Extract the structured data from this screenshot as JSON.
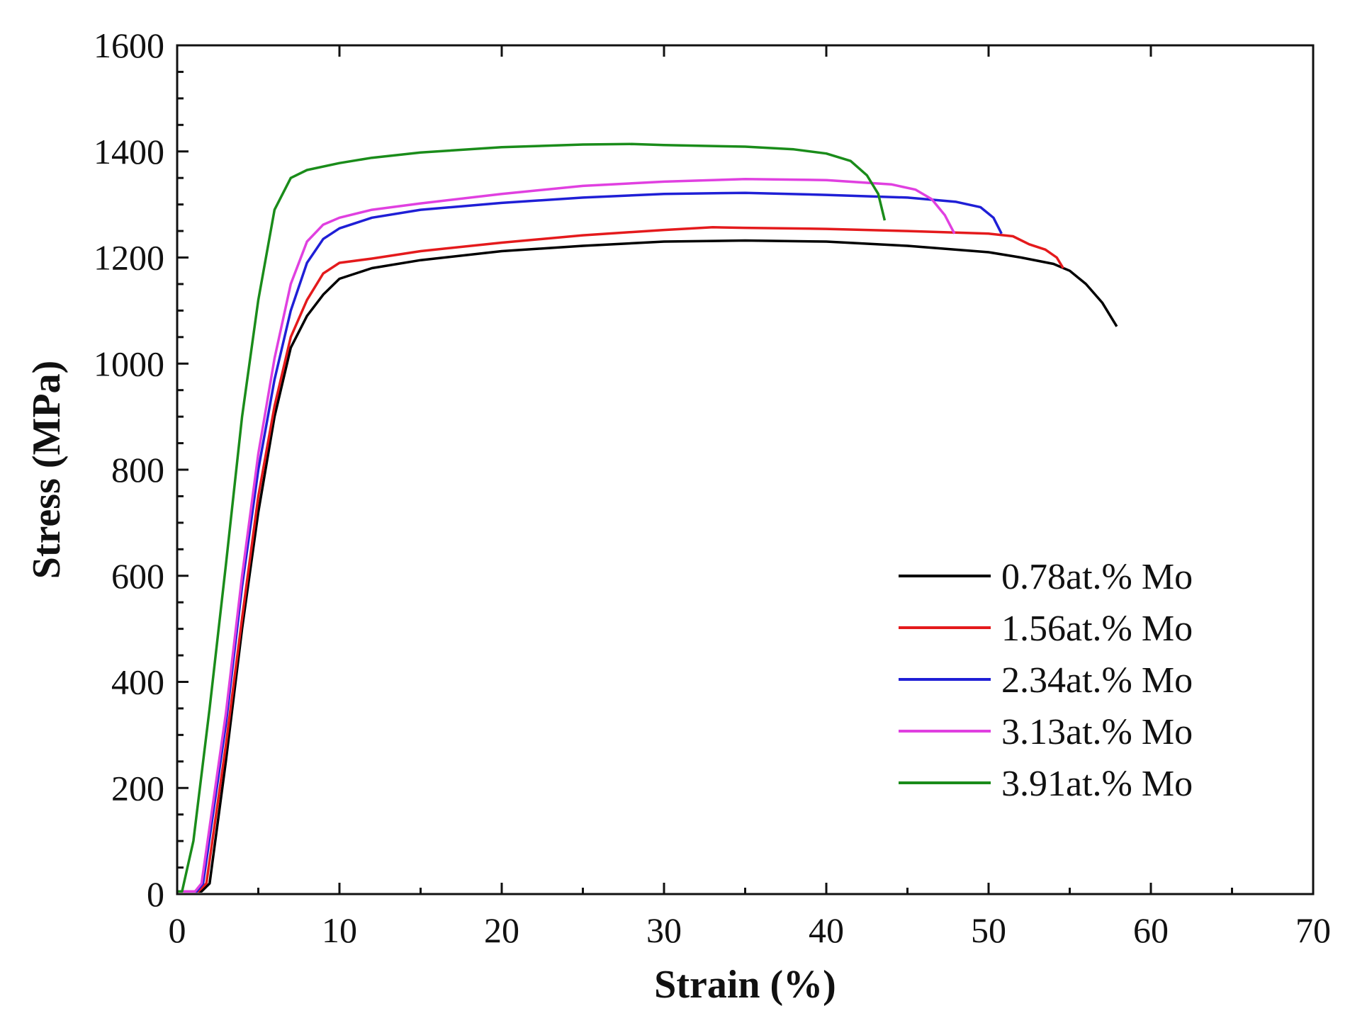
{
  "chart_data": {
    "type": "line",
    "title": "",
    "xlabel": "Strain (%)",
    "ylabel": "Stress (MPa)",
    "xlim": [
      0,
      70
    ],
    "ylim": [
      0,
      1600
    ],
    "x_ticks": [
      "0",
      "10",
      "20",
      "30",
      "40",
      "50",
      "60",
      "70"
    ],
    "y_ticks": [
      "0",
      "200",
      "400",
      "600",
      "800",
      "1000",
      "1200",
      "1400",
      "1600"
    ],
    "grid": false,
    "legend_position": "bottom-right",
    "series": [
      {
        "name": "0.78at.% Mo",
        "color": "#000000",
        "points": [
          [
            0,
            5
          ],
          [
            1.5,
            5
          ],
          [
            2.0,
            20
          ],
          [
            3.0,
            250
          ],
          [
            4.0,
            500
          ],
          [
            5.0,
            720
          ],
          [
            6.0,
            900
          ],
          [
            7.0,
            1030
          ],
          [
            8.0,
            1090
          ],
          [
            9.0,
            1130
          ],
          [
            10,
            1160
          ],
          [
            12,
            1180
          ],
          [
            15,
            1195
          ],
          [
            20,
            1212
          ],
          [
            25,
            1222
          ],
          [
            30,
            1230
          ],
          [
            35,
            1232
          ],
          [
            40,
            1230
          ],
          [
            45,
            1222
          ],
          [
            50,
            1210
          ],
          [
            52,
            1200
          ],
          [
            54,
            1188
          ],
          [
            55,
            1175
          ],
          [
            56,
            1150
          ],
          [
            57,
            1115
          ],
          [
            57.9,
            1070
          ]
        ]
      },
      {
        "name": "1.56at.% Mo",
        "color": "#e41a1c",
        "points": [
          [
            0,
            5
          ],
          [
            1.3,
            5
          ],
          [
            1.8,
            20
          ],
          [
            3.0,
            280
          ],
          [
            4.0,
            520
          ],
          [
            5.0,
            750
          ],
          [
            6.0,
            920
          ],
          [
            7.0,
            1050
          ],
          [
            8.0,
            1120
          ],
          [
            9.0,
            1170
          ],
          [
            10,
            1190
          ],
          [
            12,
            1198
          ],
          [
            15,
            1212
          ],
          [
            20,
            1228
          ],
          [
            25,
            1242
          ],
          [
            30,
            1252
          ],
          [
            33,
            1257
          ],
          [
            35,
            1256
          ],
          [
            40,
            1254
          ],
          [
            45,
            1250
          ],
          [
            50,
            1245
          ],
          [
            51.5,
            1240
          ],
          [
            52.5,
            1225
          ],
          [
            53.5,
            1215
          ],
          [
            54.2,
            1200
          ],
          [
            54.6,
            1180
          ]
        ]
      },
      {
        "name": "2.34at.% Mo",
        "color": "#1f1fd6",
        "points": [
          [
            0,
            5
          ],
          [
            1.2,
            5
          ],
          [
            1.6,
            20
          ],
          [
            3.0,
            320
          ],
          [
            4.0,
            580
          ],
          [
            5.0,
            800
          ],
          [
            6.0,
            970
          ],
          [
            7.0,
            1100
          ],
          [
            8.0,
            1190
          ],
          [
            9.0,
            1235
          ],
          [
            10,
            1255
          ],
          [
            12,
            1275
          ],
          [
            15,
            1290
          ],
          [
            20,
            1303
          ],
          [
            25,
            1313
          ],
          [
            30,
            1320
          ],
          [
            35,
            1322
          ],
          [
            40,
            1318
          ],
          [
            45,
            1313
          ],
          [
            48,
            1305
          ],
          [
            49.5,
            1295
          ],
          [
            50.3,
            1275
          ],
          [
            50.8,
            1245
          ]
        ]
      },
      {
        "name": "3.13at.% Mo",
        "color": "#e040e0",
        "points": [
          [
            0,
            5
          ],
          [
            1.1,
            5
          ],
          [
            1.5,
            20
          ],
          [
            3.0,
            340
          ],
          [
            4.0,
            600
          ],
          [
            5.0,
            830
          ],
          [
            6.0,
            1010
          ],
          [
            7.0,
            1150
          ],
          [
            8.0,
            1230
          ],
          [
            9.0,
            1262
          ],
          [
            10,
            1275
          ],
          [
            12,
            1290
          ],
          [
            15,
            1302
          ],
          [
            20,
            1320
          ],
          [
            25,
            1335
          ],
          [
            30,
            1343
          ],
          [
            35,
            1348
          ],
          [
            40,
            1346
          ],
          [
            44,
            1338
          ],
          [
            45.5,
            1328
          ],
          [
            46.5,
            1310
          ],
          [
            47.3,
            1280
          ],
          [
            47.9,
            1245
          ]
        ]
      },
      {
        "name": "3.91at.% Mo",
        "color": "#1a8c1a",
        "points": [
          [
            0,
            5
          ],
          [
            0.3,
            5
          ],
          [
            1.0,
            100
          ],
          [
            2.0,
            350
          ],
          [
            3.0,
            620
          ],
          [
            4.0,
            900
          ],
          [
            5.0,
            1120
          ],
          [
            6.0,
            1290
          ],
          [
            7.0,
            1350
          ],
          [
            8.0,
            1365
          ],
          [
            10,
            1378
          ],
          [
            12,
            1388
          ],
          [
            15,
            1398
          ],
          [
            20,
            1408
          ],
          [
            25,
            1413
          ],
          [
            28,
            1414
          ],
          [
            30,
            1412
          ],
          [
            35,
            1409
          ],
          [
            38,
            1404
          ],
          [
            40,
            1396
          ],
          [
            41.5,
            1382
          ],
          [
            42.5,
            1355
          ],
          [
            43.2,
            1320
          ],
          [
            43.6,
            1270
          ]
        ]
      }
    ]
  }
}
